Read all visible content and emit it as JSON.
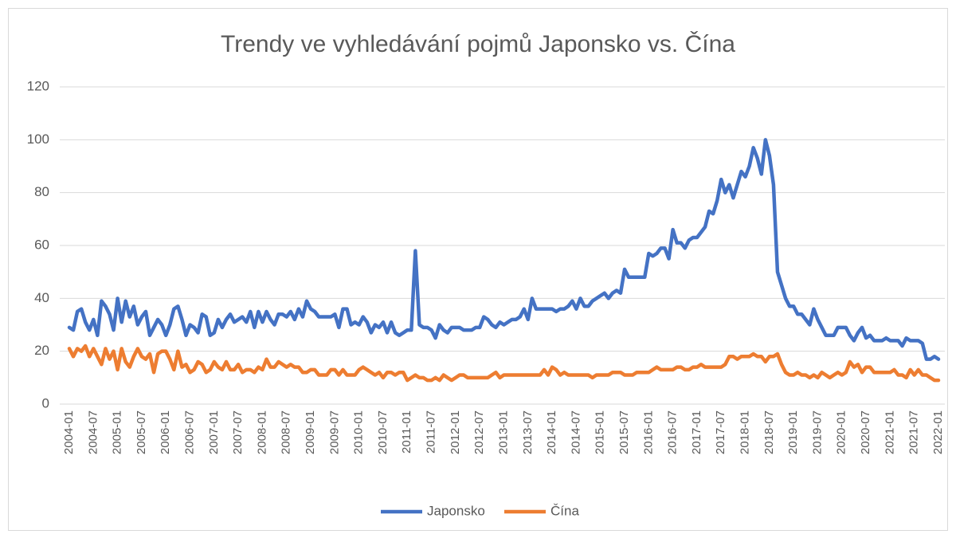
{
  "chart_data": {
    "type": "line",
    "title": "Trendy ve vyhledávání pojmů Japonsko vs. Čína",
    "categories": [
      "2004-01",
      null,
      null,
      null,
      null,
      null,
      "2004-07",
      null,
      null,
      null,
      null,
      null,
      "2005-01",
      null,
      null,
      null,
      null,
      null,
      "2005-07",
      null,
      null,
      null,
      null,
      null,
      "2006-01",
      null,
      null,
      null,
      null,
      null,
      "2006-07",
      null,
      null,
      null,
      null,
      null,
      "2007-01",
      null,
      null,
      null,
      null,
      null,
      "2007-07",
      null,
      null,
      null,
      null,
      null,
      "2008-01",
      null,
      null,
      null,
      null,
      null,
      "2008-07",
      null,
      null,
      null,
      null,
      null,
      "2009-01",
      null,
      null,
      null,
      null,
      null,
      "2009-07",
      null,
      null,
      null,
      null,
      null,
      "2010-01",
      null,
      null,
      null,
      null,
      null,
      "2010-07",
      null,
      null,
      null,
      null,
      null,
      "2011-01",
      null,
      null,
      null,
      null,
      null,
      "2011-07",
      null,
      null,
      null,
      null,
      null,
      "2012-01",
      null,
      null,
      null,
      null,
      null,
      "2012-07",
      null,
      null,
      null,
      null,
      null,
      "2013-01",
      null,
      null,
      null,
      null,
      null,
      "2013-07",
      null,
      null,
      null,
      null,
      null,
      "2014-01",
      null,
      null,
      null,
      null,
      null,
      "2014-07",
      null,
      null,
      null,
      null,
      null,
      "2015-01",
      null,
      null,
      null,
      null,
      null,
      "2015-07",
      null,
      null,
      null,
      null,
      null,
      "2016-01",
      null,
      null,
      null,
      null,
      null,
      "2016-07",
      null,
      null,
      null,
      null,
      null,
      "2017-01",
      null,
      null,
      null,
      null,
      null,
      "2017-07",
      null,
      null,
      null,
      null,
      null,
      "2018-01",
      null,
      null,
      null,
      null,
      null,
      "2018-07",
      null,
      null,
      null,
      null,
      null,
      "2019-01",
      null,
      null,
      null,
      null,
      null,
      "2019-07",
      null,
      null,
      null,
      null,
      null,
      "2020-01",
      null,
      null,
      null,
      null,
      null,
      "2020-07",
      null,
      null,
      null,
      null,
      null,
      "2021-01",
      null,
      null,
      null,
      null,
      null,
      "2021-07",
      null,
      null,
      null,
      null,
      null,
      "2022-01"
    ],
    "series": [
      {
        "name": "Japonsko",
        "color": "#4472c4",
        "values": [
          29,
          28,
          35,
          36,
          31,
          28,
          32,
          26,
          39,
          37,
          34,
          28,
          40,
          31,
          39,
          33,
          37,
          30,
          33,
          35,
          26,
          29,
          32,
          30,
          26,
          30,
          36,
          37,
          32,
          26,
          30,
          29,
          27,
          34,
          33,
          26,
          27,
          32,
          29,
          32,
          34,
          31,
          32,
          33,
          31,
          35,
          29,
          35,
          31,
          35,
          32,
          30,
          34,
          34,
          33,
          35,
          32,
          36,
          33,
          39,
          36,
          35,
          33,
          33,
          33,
          33,
          34,
          29,
          36,
          36,
          30,
          31,
          30,
          33,
          31,
          27,
          30,
          29,
          31,
          27,
          31,
          27,
          26,
          27,
          28,
          28,
          58,
          30,
          29,
          29,
          28,
          25,
          30,
          28,
          27,
          29,
          29,
          29,
          28,
          28,
          28,
          29,
          29,
          33,
          32,
          30,
          29,
          31,
          30,
          31,
          32,
          32,
          33,
          36,
          32,
          40,
          36,
          36,
          36,
          36,
          36,
          35,
          36,
          36,
          37,
          39,
          36,
          40,
          37,
          37,
          39,
          40,
          41,
          42,
          40,
          42,
          43,
          42,
          51,
          48,
          48,
          48,
          48,
          48,
          57,
          56,
          57,
          59,
          59,
          55,
          66,
          61,
          61,
          59,
          62,
          63,
          63,
          65,
          67,
          73,
          72,
          77,
          85,
          80,
          83,
          78,
          83,
          88,
          86,
          90,
          97,
          93,
          87,
          100,
          94,
          83,
          50,
          45,
          40,
          37,
          37,
          34,
          34,
          32,
          30,
          36,
          32,
          29,
          26,
          26,
          26,
          29,
          29,
          29,
          26,
          24,
          27,
          29,
          25,
          26,
          24,
          24,
          24,
          25,
          24,
          24,
          24,
          22,
          25,
          24,
          24,
          24,
          23,
          17,
          17,
          18,
          17
        ]
      },
      {
        "name": "Čína",
        "color": "#ed7d31",
        "values": [
          21,
          18,
          21,
          20,
          22,
          18,
          21,
          18,
          15,
          21,
          17,
          20,
          13,
          21,
          16,
          14,
          18,
          21,
          18,
          17,
          19,
          12,
          19,
          20,
          20,
          17,
          13,
          20,
          14,
          15,
          12,
          13,
          16,
          15,
          12,
          13,
          16,
          14,
          13,
          16,
          13,
          13,
          15,
          12,
          13,
          13,
          12,
          14,
          13,
          17,
          14,
          14,
          16,
          15,
          14,
          15,
          14,
          14,
          12,
          12,
          13,
          13,
          11,
          11,
          11,
          13,
          13,
          11,
          13,
          11,
          11,
          11,
          13,
          14,
          13,
          12,
          11,
          12,
          10,
          12,
          12,
          11,
          12,
          12,
          9,
          10,
          11,
          10,
          10,
          9,
          9,
          10,
          9,
          11,
          10,
          9,
          10,
          11,
          11,
          10,
          10,
          10,
          10,
          10,
          10,
          11,
          12,
          10,
          11,
          11,
          11,
          11,
          11,
          11,
          11,
          11,
          11,
          11,
          13,
          11,
          14,
          13,
          11,
          12,
          11,
          11,
          11,
          11,
          11,
          11,
          10,
          11,
          11,
          11,
          11,
          12,
          12,
          12,
          11,
          11,
          11,
          12,
          12,
          12,
          12,
          13,
          14,
          13,
          13,
          13,
          13,
          14,
          14,
          13,
          13,
          14,
          14,
          15,
          14,
          14,
          14,
          14,
          14,
          15,
          18,
          18,
          17,
          18,
          18,
          18,
          19,
          18,
          18,
          16,
          18,
          18,
          19,
          15,
          12,
          11,
          11,
          12,
          11,
          11,
          10,
          11,
          10,
          12,
          11,
          10,
          11,
          12,
          11,
          12,
          16,
          14,
          15,
          12,
          14,
          14,
          12,
          12,
          12,
          12,
          12,
          13,
          11,
          11,
          10,
          13,
          11,
          13,
          11,
          11,
          10,
          9,
          9
        ]
      }
    ],
    "ylim": [
      0,
      120
    ],
    "yticks": [
      0,
      20,
      40,
      60,
      80,
      100,
      120
    ],
    "grid": true,
    "legend": "bottom"
  }
}
